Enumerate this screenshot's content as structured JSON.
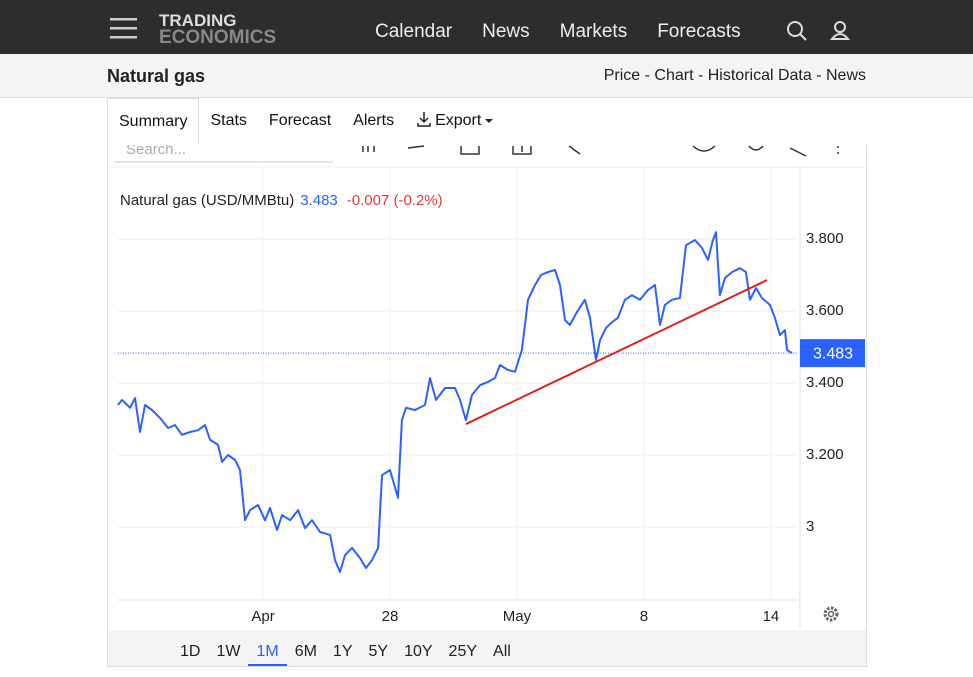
{
  "nav": {
    "logo_top": "TRADING",
    "logo_bottom": "ECONOMICS",
    "links": [
      "Calendar",
      "News",
      "Markets",
      "Forecasts"
    ]
  },
  "header": {
    "title": "Natural gas",
    "links": "Price - Chart - Historical Data - News"
  },
  "tabs": [
    "Summary",
    "Stats",
    "Forecast",
    "Alerts",
    "Export"
  ],
  "search_placeholder": "Search...",
  "chart_data": {
    "type": "line",
    "title": "Natural gas (USD/MMBtu)",
    "last": 3.483,
    "change": "-0.007 (-0.2%)",
    "x": [
      -0.142,
      -0.11,
      -0.047,
      -0.008,
      0.031,
      0.071,
      0.126,
      0.189,
      0.252,
      0.307,
      0.362,
      0.425,
      0.488,
      0.543,
      0.583,
      0.646,
      0.677,
      0.724,
      0.78,
      0.819,
      0.858,
      0.898,
      0.961,
      1.016,
      1.055,
      1.11,
      1.15,
      1.213,
      1.276,
      1.331,
      1.386,
      1.449,
      1.528,
      1.567,
      1.606,
      1.646,
      1.701,
      1.764,
      1.811,
      1.858,
      1.906,
      1.937,
      2.0,
      2.063,
      2.094,
      2.126,
      2.197,
      2.276,
      2.315,
      2.362,
      2.433,
      2.512,
      2.551,
      2.598,
      2.646,
      2.709,
      2.772,
      2.827,
      2.866,
      2.929,
      2.984,
      3.039,
      3.087,
      3.142,
      3.189,
      3.244,
      3.299,
      3.339,
      3.378,
      3.417,
      3.472,
      3.535,
      3.575,
      3.622,
      3.654,
      3.701,
      3.748,
      3.795,
      3.85,
      3.906,
      3.969,
      4.031,
      4.087,
      4.126,
      4.165,
      4.22,
      4.283,
      4.331,
      4.402,
      4.457,
      4.504,
      4.543,
      4.567,
      4.598,
      4.638,
      4.693,
      4.756,
      4.803,
      4.835,
      4.882,
      4.929,
      4.992,
      5.031,
      5.071,
      5.11,
      5.126,
      5.165
    ],
    "series": [
      {
        "name": "Natural gas (USD/MMBtu)",
        "color": "#2962ff",
        "values": [
          3.339,
          3.353,
          3.331,
          3.358,
          3.264,
          3.339,
          3.325,
          3.303,
          3.275,
          3.283,
          3.256,
          3.264,
          3.269,
          3.283,
          3.242,
          3.228,
          3.181,
          3.2,
          3.186,
          3.158,
          3.019,
          3.047,
          3.061,
          3.019,
          3.053,
          2.992,
          3.033,
          3.019,
          3.047,
          2.997,
          3.019,
          2.986,
          2.978,
          2.908,
          2.875,
          2.922,
          2.942,
          2.914,
          2.886,
          2.908,
          2.942,
          3.144,
          3.158,
          3.081,
          3.297,
          3.331,
          3.325,
          3.339,
          3.414,
          3.353,
          3.386,
          3.386,
          3.353,
          3.297,
          3.367,
          3.394,
          3.403,
          3.414,
          3.45,
          3.436,
          3.431,
          3.492,
          3.631,
          3.672,
          3.7,
          3.708,
          3.714,
          3.672,
          3.575,
          3.561,
          3.597,
          3.631,
          3.581,
          3.464,
          3.519,
          3.553,
          3.569,
          3.581,
          3.631,
          3.644,
          3.631,
          3.658,
          3.672,
          3.561,
          3.617,
          3.631,
          3.636,
          3.783,
          3.797,
          3.775,
          3.742,
          3.797,
          3.819,
          3.644,
          3.692,
          3.708,
          3.719,
          3.708,
          3.631,
          3.664,
          3.636,
          3.617,
          3.581,
          3.533,
          3.547,
          3.492,
          3.483
        ]
      }
    ],
    "trendline": {
      "color": "#e0201b",
      "x": [
        2.598,
        4.969
      ],
      "values": [
        3.286,
        3.686
      ]
    },
    "xlim": [
      -0.142,
      5.213
    ],
    "ylim": [
      2.8,
      4.0
    ],
    "xticks": [
      {
        "value": 1,
        "label": "Apr"
      },
      {
        "value": 2,
        "label": "28"
      },
      {
        "value": 3,
        "label": "May"
      },
      {
        "value": 4,
        "label": "8"
      },
      {
        "value": 5,
        "label": "14"
      }
    ],
    "yticks": [
      3,
      {
        "value": 3.2,
        "label": "3.200"
      },
      {
        "value": 3.4,
        "label": "3.400"
      },
      {
        "value": 3.6,
        "label": "3.600"
      },
      {
        "value": 3.8,
        "label": "3.800"
      }
    ],
    "grid": true
  },
  "ranges": [
    "1D",
    "1W",
    "1M",
    "6M",
    "1Y",
    "5Y",
    "10Y",
    "25Y",
    "All"
  ],
  "active_range": "1M"
}
